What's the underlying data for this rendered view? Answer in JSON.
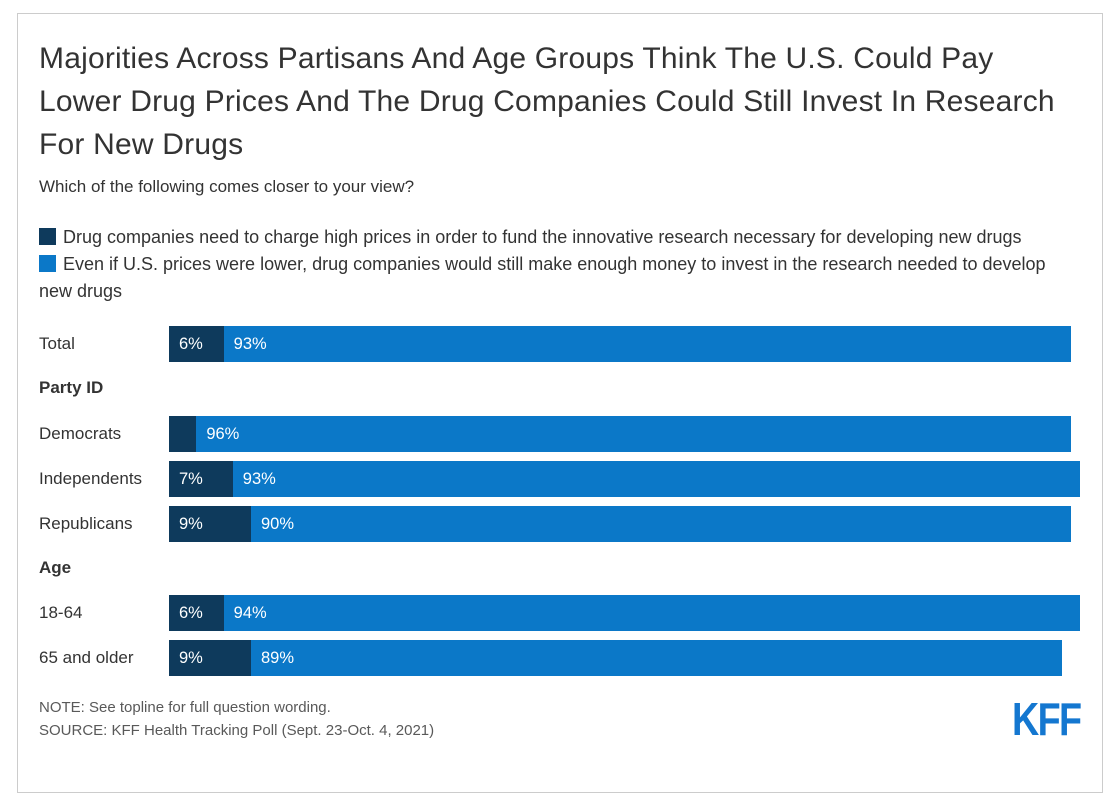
{
  "card": {
    "title": "Majorities Across Partisans And Age Groups Think The U.S. Could Pay Lower Drug Prices And The Drug Companies Could Still Invest In Research For New Drugs",
    "subtitle": "Which of the following comes closer to your view?",
    "note": "NOTE: See topline for full question wording.",
    "source": "SOURCE: KFF Health Tracking Poll (Sept. 23-Oct. 4, 2021)",
    "logo_text": "KFF"
  },
  "colors": {
    "dark_blue": "#0e3a5c",
    "light_blue": "#0b78c8",
    "logo_blue": "#1477d0",
    "text": "#333333",
    "muted_text": "#595959",
    "card_border": "#cccccc"
  },
  "legend": [
    {
      "color": "#0e3a5c",
      "label": "Drug companies need to charge high prices in order to fund the innovative research necessary for developing new drugs"
    },
    {
      "color": "#0b78c8",
      "label": "Even if U.S. prices were lower, drug companies would still make enough money to invest in the research needed to develop new drugs"
    }
  ],
  "chart_data": {
    "type": "bar",
    "orientation": "horizontal",
    "stacked": true,
    "unit": "%",
    "x_range": [
      0,
      100
    ],
    "grid": false,
    "legend_position": "top",
    "series_names": [
      "Drug companies need to charge high prices in order to fund the innovative research necessary for developing new drugs",
      "Even if U.S. prices were lower, drug companies would still make enough money to invest in the research needed to develop new drugs"
    ],
    "rows": [
      {
        "kind": "bar",
        "label": "Total",
        "dark": 6,
        "dark_label": "6%",
        "light": 93,
        "light_label": "93%"
      },
      {
        "kind": "section",
        "label": "Party ID"
      },
      {
        "kind": "bar",
        "label": "Democrats",
        "dark": 3,
        "dark_label": "",
        "light": 96,
        "light_label": "96%"
      },
      {
        "kind": "bar",
        "label": "Independents",
        "dark": 7,
        "dark_label": "7%",
        "light": 93,
        "light_label": "93%"
      },
      {
        "kind": "bar",
        "label": "Republicans",
        "dark": 9,
        "dark_label": "9%",
        "light": 90,
        "light_label": "90%"
      },
      {
        "kind": "section",
        "label": "Age"
      },
      {
        "kind": "bar",
        "label": "18-64",
        "dark": 6,
        "dark_label": "6%",
        "light": 94,
        "light_label": "94%"
      },
      {
        "kind": "bar",
        "label": "65 and older",
        "dark": 9,
        "dark_label": "9%",
        "light": 89,
        "light_label": "89%"
      }
    ]
  }
}
